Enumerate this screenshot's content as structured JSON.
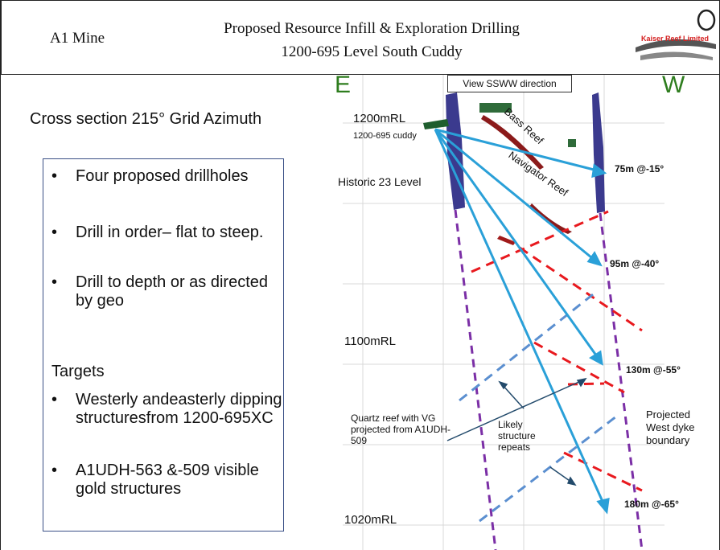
{
  "header": {
    "mine_name": "A1 Mine",
    "title_line1": "Proposed Resource Infill & Exploration Drilling",
    "title_line2": "1200-695 Level South Cuddy",
    "logo_text": "Kaiser Reef Limited"
  },
  "left": {
    "section_title": "Cross section 215° Grid Azimuth",
    "bullets": [
      "Four proposed drillholes",
      "Drill in order– flat to steep.",
      "Drill to depth or as directed by geo"
    ],
    "targets_heading": "Targets",
    "targets": [
      "Westerly andeasterly dipping structuresfrom 1200-695XC",
      "A1UDH-563 &-509 visible gold structures"
    ]
  },
  "diagram": {
    "east_label": "E",
    "west_label": "W",
    "view_label": "View SSWW direction",
    "rl_1200": "1200mRL",
    "cuddy": "1200-695 cuddy",
    "historic": "Historic 23 Level",
    "rl_1100": "1100mRL",
    "rl_1020": "1020mRL",
    "bass_reef": "Bass Reef",
    "navigator_reef": "Navigator Reef",
    "quartz_note": "Quartz reef with VG projected from A1UDH-509",
    "likely_note": "Likely structure repeats",
    "dyke_note": "Projected West dyke boundary",
    "holes": [
      "75m @-15°",
      "95m @-40°",
      "130m @-55°",
      "180m @-65°"
    ],
    "colors": {
      "drillhole": "#2aa0d8",
      "structure_red": "#e8191e",
      "structure_blue": "#5b8fd0",
      "dyke_boundary": "#7b2fa6",
      "dyke_body": "#3b3a8e",
      "reef": "#8b1a1a",
      "direction_letters": "#2e7d1e"
    }
  }
}
